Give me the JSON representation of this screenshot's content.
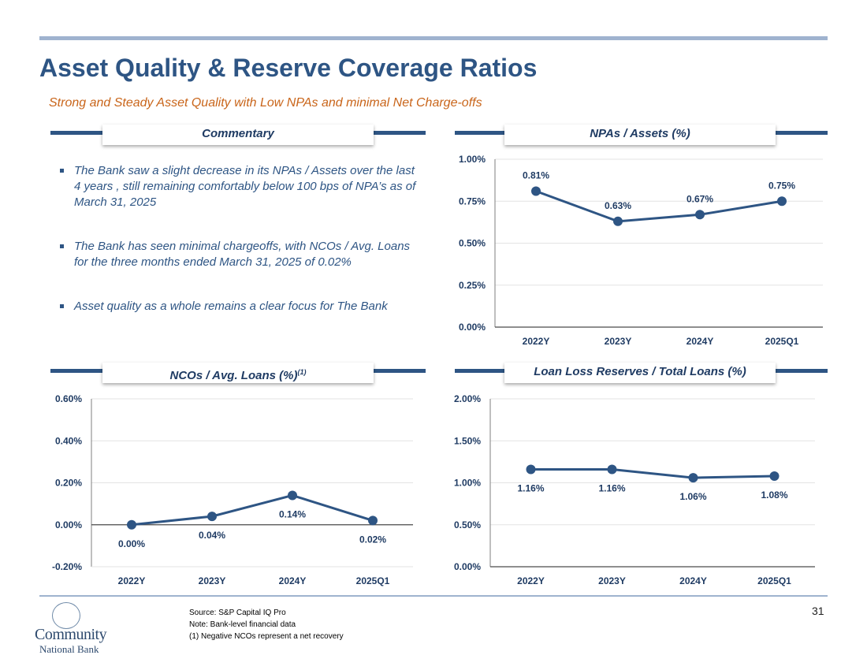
{
  "title": "Asset Quality & Reserve Coverage Ratios",
  "subtitle": "Strong and Steady Asset Quality with Low NPAs and minimal Net Charge-offs",
  "commentary": {
    "header": "Commentary",
    "bullets": [
      "The Bank saw a slight decrease in its NPAs / Assets over the last 4 years , still remaining comfortably below 100 bps of NPA’s as of March 31, 2025",
      "The Bank has seen minimal chargeoffs, with NCOs / Avg. Loans for the three months ended March 31, 2025 of 0.02%",
      "Asset quality as a whole remains a clear focus for The Bank"
    ]
  },
  "chart_data": [
    {
      "type": "line",
      "title": "NPAs / Assets (%)",
      "categories": [
        "2022Y",
        "2023Y",
        "2024Y",
        "2025Q1"
      ],
      "values": [
        0.81,
        0.63,
        0.67,
        0.75
      ],
      "data_labels": [
        "0.81%",
        "0.63%",
        "0.67%",
        "0.75%"
      ],
      "label_position": "above",
      "ylim": [
        0,
        1.0
      ],
      "yticks": [
        "1.00%",
        "0.75%",
        "0.50%",
        "0.25%",
        "0.00%"
      ],
      "grid": true
    },
    {
      "type": "line",
      "title": "NCOs / Avg. Loans (%)",
      "title_sup": "(1)",
      "categories": [
        "2022Y",
        "2023Y",
        "2024Y",
        "2025Q1"
      ],
      "values": [
        0.0,
        0.04,
        0.14,
        0.02
      ],
      "data_labels": [
        "0.00%",
        "0.04%",
        "0.14%",
        "0.02%"
      ],
      "label_position": "below",
      "ylim": [
        -0.2,
        0.6
      ],
      "yticks": [
        "0.60%",
        "0.40%",
        "0.20%",
        "0.00%",
        "-0.20%"
      ],
      "grid": true
    },
    {
      "type": "line",
      "title": "Loan Loss Reserves / Total Loans (%)",
      "categories": [
        "2022Y",
        "2023Y",
        "2024Y",
        "2025Q1"
      ],
      "values": [
        1.16,
        1.16,
        1.06,
        1.08
      ],
      "data_labels": [
        "1.16%",
        "1.16%",
        "1.06%",
        "1.08%"
      ],
      "label_position": "below",
      "ylim": [
        0,
        2.0
      ],
      "yticks": [
        "2.00%",
        "1.50%",
        "1.00%",
        "0.50%",
        "0.00%"
      ],
      "grid": true
    }
  ],
  "footer": {
    "source": "Source: S&P Capital IQ Pro",
    "note": "Note: Bank-level financial data",
    "footnote": "(1) Negative NCOs represent a net recovery",
    "page": "31",
    "logo_line1": "Community",
    "logo_line2": "National Bank"
  },
  "colors": {
    "line": "#2e5584",
    "title": "#2e5584",
    "subtitle": "#c9651a",
    "grid": "#e3e3e3"
  }
}
